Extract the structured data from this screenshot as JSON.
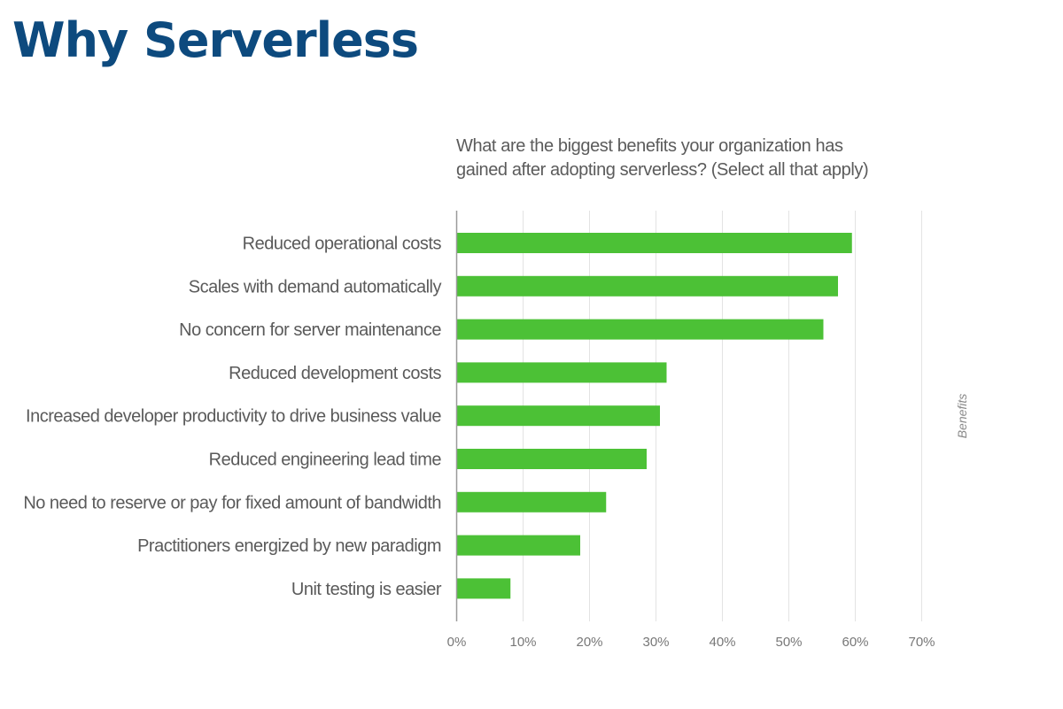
{
  "slide": {
    "title": "Why Serverless"
  },
  "colors": {
    "title": "#0d4a7e",
    "bar": "#4cc136",
    "grid": "#e3e3e3",
    "axis": "#9a9a9a",
    "text": "#5a5a5a"
  },
  "chart_data": {
    "type": "bar",
    "orientation": "horizontal",
    "title": "What are the biggest benefits your organization has gained after adopting serverless? (Select all that apply)",
    "categories": [
      "Reduced operational costs",
      "Scales with demand automatically",
      "No concern for server maintenance",
      "Reduced development costs",
      "Increased developer productivity to drive business value",
      "Reduced engineering lead time",
      "No need to reserve or pay for fixed amount of bandwidth",
      "Practitioners energized by new paradigm",
      "Unit testing is easier"
    ],
    "values": [
      59.5,
      57.4,
      55.2,
      31.6,
      30.6,
      28.6,
      22.5,
      18.6,
      8.1
    ],
    "value_unit": "%",
    "xlim": [
      0,
      70
    ],
    "xticks": [
      "0%",
      "10%",
      "20%",
      "30%",
      "40%",
      "50%",
      "60%",
      "70%"
    ],
    "series_label": "Benefits",
    "grid": true,
    "legend": "none"
  }
}
